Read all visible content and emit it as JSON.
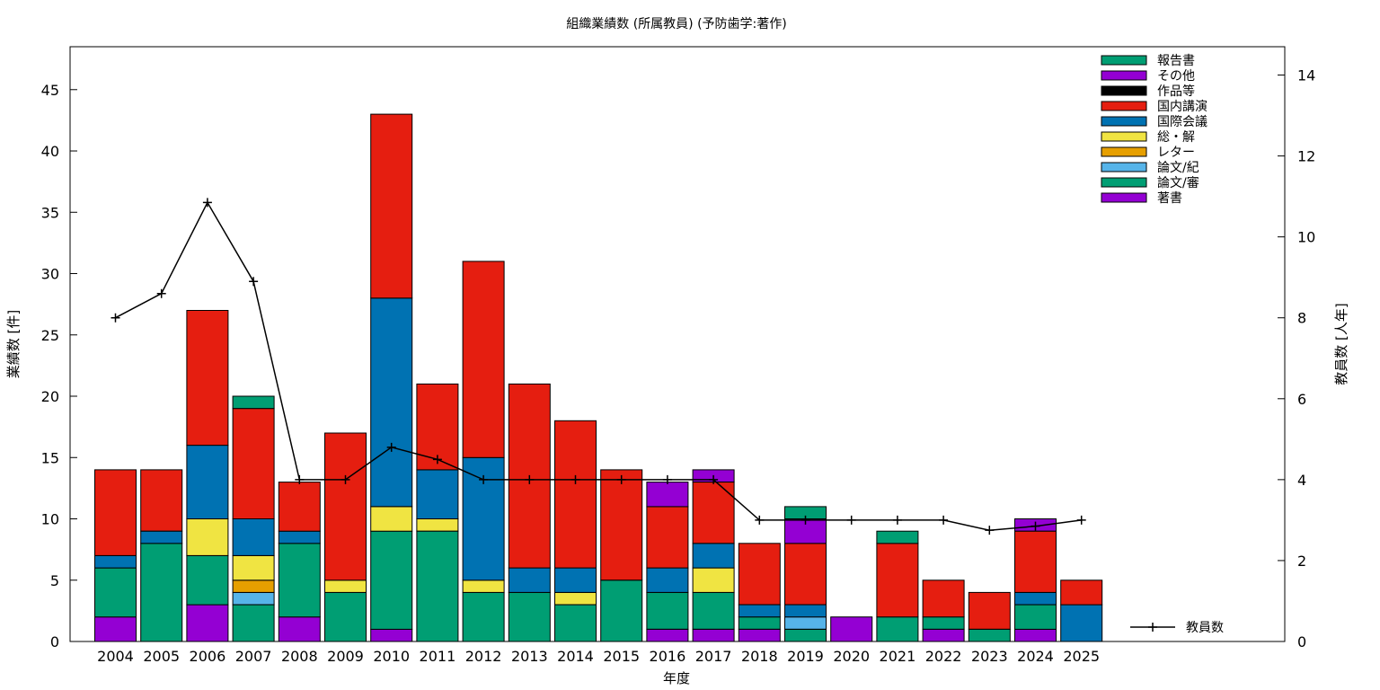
{
  "chart_data": {
    "type": "bar",
    "subtype": "stacked bar with line on secondary axis",
    "title": "組織業績数 (所属教員) (予防歯学:著作)",
    "xlabel": "年度",
    "ylabel": "業績数 [件]",
    "y2label": "教員数 [人年]",
    "ylim": [
      0,
      48.5
    ],
    "y2lim": [
      0,
      14.7
    ],
    "yticks": [
      0,
      5,
      10,
      15,
      20,
      25,
      30,
      35,
      40,
      45
    ],
    "y2ticks": [
      0,
      2,
      4,
      6,
      8,
      10,
      12,
      14
    ],
    "grid": false,
    "legend_position": "top-right",
    "categories": [
      "2004",
      "2005",
      "2006",
      "2007",
      "2008",
      "2009",
      "2010",
      "2011",
      "2012",
      "2013",
      "2014",
      "2015",
      "2016",
      "2017",
      "2018",
      "2019",
      "2020",
      "2021",
      "2022",
      "2023",
      "2024",
      "2025"
    ],
    "series": [
      {
        "name": "著書",
        "color": "#9400D3",
        "values": [
          2,
          0,
          3,
          0,
          2,
          0,
          1,
          0,
          0,
          0,
          0,
          0,
          1,
          1,
          1,
          0,
          2,
          0,
          1,
          0,
          1,
          0
        ]
      },
      {
        "name": "論文/審",
        "color": "#009E73",
        "values": [
          4,
          8,
          4,
          3,
          6,
          4,
          8,
          9,
          4,
          4,
          3,
          5,
          3,
          3,
          1,
          1,
          0,
          2,
          1,
          1,
          2,
          0
        ]
      },
      {
        "name": "論文/紀",
        "color": "#56B4E9",
        "values": [
          0,
          0,
          0,
          1,
          0,
          0,
          0,
          0,
          0,
          0,
          0,
          0,
          0,
          0,
          0,
          1,
          0,
          0,
          0,
          0,
          0,
          0
        ]
      },
      {
        "name": "レター",
        "color": "#E69F00",
        "values": [
          0,
          0,
          0,
          1,
          0,
          0,
          0,
          0,
          0,
          0,
          0,
          0,
          0,
          0,
          0,
          0,
          0,
          0,
          0,
          0,
          0,
          0
        ]
      },
      {
        "name": "総・解",
        "color": "#F0E442",
        "values": [
          0,
          0,
          3,
          2,
          0,
          1,
          2,
          1,
          1,
          0,
          1,
          0,
          0,
          2,
          0,
          0,
          0,
          0,
          0,
          0,
          0,
          0
        ]
      },
      {
        "name": "国際会議",
        "color": "#0072B2",
        "values": [
          1,
          1,
          6,
          3,
          1,
          0,
          17,
          4,
          10,
          2,
          2,
          0,
          2,
          2,
          1,
          1,
          0,
          0,
          0,
          0,
          1,
          3
        ]
      },
      {
        "name": "国内講演",
        "color": "#E51E10",
        "values": [
          7,
          5,
          11,
          9,
          4,
          12,
          15,
          7,
          16,
          15,
          12,
          9,
          5,
          5,
          5,
          5,
          0,
          6,
          3,
          3,
          5,
          2
        ]
      },
      {
        "name": "作品等",
        "color": "#000000",
        "values": [
          0,
          0,
          0,
          0,
          0,
          0,
          0,
          0,
          0,
          0,
          0,
          0,
          0,
          0,
          0,
          0,
          0,
          0,
          0,
          0,
          0,
          0
        ]
      },
      {
        "name": "その他",
        "color": "#9400D3",
        "values": [
          0,
          0,
          0,
          0,
          0,
          0,
          0,
          0,
          0,
          0,
          0,
          0,
          2,
          1,
          0,
          2,
          0,
          0,
          0,
          0,
          1,
          0
        ]
      },
      {
        "name": "報告書",
        "color": "#009E73",
        "values": [
          0,
          0,
          0,
          1,
          0,
          0,
          0,
          0,
          0,
          0,
          0,
          0,
          0,
          0,
          0,
          1,
          0,
          1,
          0,
          0,
          0,
          0
        ]
      }
    ],
    "line_series": {
      "name": "教員数",
      "color": "#000000",
      "axis": "y2",
      "values": [
        8.0,
        8.6,
        10.85,
        8.9,
        4.0,
        4.0,
        4.8,
        4.5,
        4.0,
        4.0,
        4.0,
        4.0,
        4.0,
        4.0,
        3.0,
        3.0,
        3.0,
        3.0,
        3.0,
        2.75,
        2.85,
        3.0
      ]
    }
  }
}
